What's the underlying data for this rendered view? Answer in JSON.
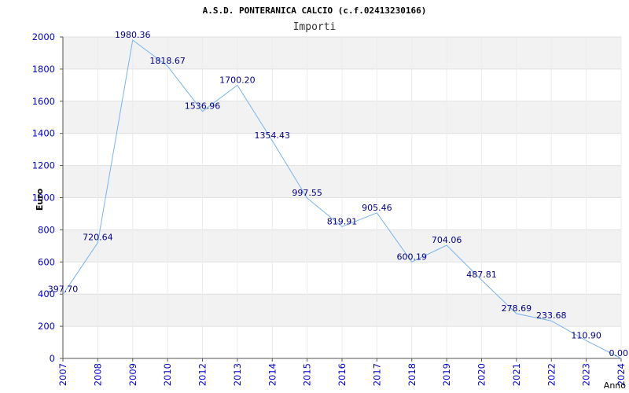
{
  "chart_data": {
    "type": "line",
    "title": "A.S.D. PONTERANICA CALCIO (c.f.02413230166)",
    "subtitle": "Importi",
    "xlabel": "Anno",
    "ylabel": "Euro",
    "categories": [
      "2007",
      "2008",
      "2009",
      "2010",
      "2012",
      "2013",
      "2014",
      "2015",
      "2016",
      "2017",
      "2018",
      "2019",
      "2020",
      "2021",
      "2022",
      "2023",
      "2024"
    ],
    "values": [
      397.7,
      720.64,
      1980.36,
      1818.67,
      1536.96,
      1700.2,
      1354.43,
      997.55,
      819.91,
      905.46,
      600.19,
      704.06,
      487.81,
      278.69,
      233.68,
      110.9,
      0.0
    ],
    "data_labels": [
      "397.70",
      "720.64",
      "1980.36",
      "1818.67",
      "1536.96",
      "1700.20",
      "1354.43",
      "997.55",
      "819.91",
      "905.46",
      "600.19",
      "704.06",
      "487.81",
      "278.69",
      "233.68",
      "110.90",
      "0.00"
    ],
    "ylim": [
      0,
      2000
    ],
    "yticks": [
      "0",
      "200",
      "400",
      "600",
      "800",
      "1000",
      "1200",
      "1400",
      "1600",
      "1800",
      "2000"
    ],
    "grid": true,
    "legend": "none",
    "colors": {
      "line": "#78b4ee",
      "label": "#00008b",
      "tick": "#0000cc",
      "band": "#f2f2f2",
      "grid": "#e0e0e0",
      "axis": "#555555"
    }
  }
}
